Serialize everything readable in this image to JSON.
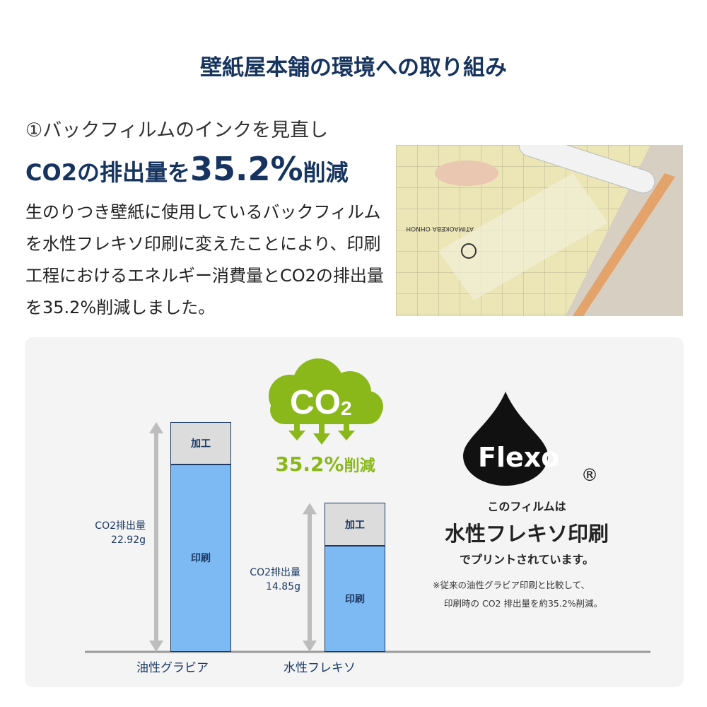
{
  "title": "壁紙屋本舗の環境への取り組み",
  "section": {
    "heading": "①バックフィルムのインクを見直し",
    "headline_pre": "CO2の排出量を",
    "headline_value": "35.2%",
    "headline_post": "削減",
    "body": "生のりつき壁紙に使用しているバックフィルムを水性フレキソ印刷に変えたことにより、印刷工程におけるエネルギー消費量とCO2の排出量を35.2%削減しました。"
  },
  "photo": {
    "film_text": "ATIMAOKEBA OHNOH"
  },
  "badge": {
    "cloud_text": "CO",
    "cloud_sub": "2",
    "reduction_value": "35.2%",
    "reduction_label": "削減",
    "color": "#8ab81a"
  },
  "flexo": {
    "logo_text": "Flexo",
    "registered": "®",
    "line1": "このフィルムは",
    "line2": "水性フレキソ印刷",
    "line3": "でプリントされています。",
    "note1": "※従来の油性グラビア印刷と比較して、",
    "note2": "印刷時の CO2 排出量を約35.2%削減。"
  },
  "chart_data": {
    "type": "bar",
    "stacked": true,
    "categories": [
      "油性グラビア",
      "水性フレキソ"
    ],
    "totals": [
      22.92,
      14.85
    ],
    "total_labels": [
      {
        "label": "CO2排出量",
        "value": "22.92g"
      },
      {
        "label": "CO2排出量",
        "value": "14.85g"
      }
    ],
    "series": [
      {
        "name": "印刷",
        "values": [
          18.7,
          10.6
        ],
        "color": "#7db9f2"
      },
      {
        "name": "加工",
        "values": [
          4.2,
          4.3
        ],
        "color": "#dcdcdc"
      }
    ],
    "unit": "g",
    "ylim": [
      0,
      22.92
    ],
    "grid": false
  }
}
